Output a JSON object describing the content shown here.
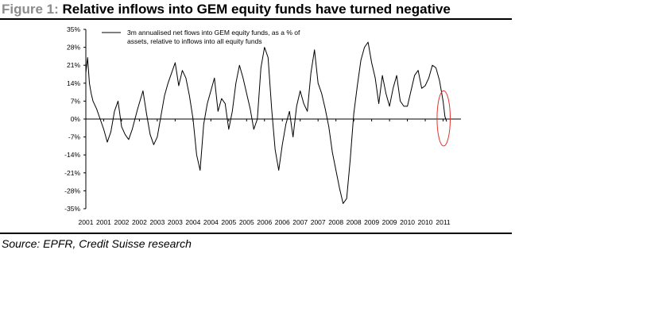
{
  "figure": {
    "prefix": "Figure 1:",
    "title": "Relative inflows into GEM equity funds have turned negative",
    "source": "Source: EPFR, Credit Suisse research"
  },
  "colors": {
    "series": "#000000",
    "highlight": "#e0362c",
    "prefix": "#8c8c8c"
  },
  "highlight": {
    "description_icon": "red-ellipse-highlight",
    "x_start": 2010.83,
    "x_end": 2011.2,
    "y_low": -10.5,
    "y_high": 11
  },
  "chart_data": {
    "type": "line",
    "title": "Relative inflows into GEM equity funds have turned negative",
    "xlabel": "",
    "ylabel": "",
    "ylim": [
      -35,
      35
    ],
    "xlim": [
      2001.0,
      2011.5
    ],
    "y_ticks": [
      35,
      28,
      21,
      14,
      7,
      0,
      -7,
      -14,
      -21,
      -28,
      -35
    ],
    "y_tick_labels": [
      "35%",
      "28%",
      "21%",
      "14%",
      "7%",
      "0%",
      "-7%",
      "-14%",
      "-21%",
      "-28%",
      "-35%"
    ],
    "x_tick_labels": [
      "2001",
      "2001",
      "2002",
      "2002",
      "2003",
      "2003",
      "2004",
      "2004",
      "2005",
      "2005",
      "2006",
      "2006",
      "2007",
      "2007",
      "2008",
      "2008",
      "2009",
      "2009",
      "2010",
      "2010",
      "2011"
    ],
    "legend": {
      "position": "top-left",
      "line1": "3m annualised net flows into GEM equity funds, as a % of",
      "line2": "assets, relative to inflows into all equity funds"
    },
    "grid": false,
    "series": [
      {
        "name": "3m annualised net flows into GEM equity funds, as a % of assets, relative to inflows into all equity funds",
        "x": [
          2001.0,
          2001.05,
          2001.1,
          2001.15,
          2001.2,
          2001.3,
          2001.4,
          2001.5,
          2001.6,
          2001.7,
          2001.8,
          2001.9,
          2002.0,
          2002.1,
          2002.2,
          2002.3,
          2002.45,
          2002.6,
          2002.7,
          2002.8,
          2002.9,
          2003.0,
          2003.1,
          2003.2,
          2003.3,
          2003.4,
          2003.5,
          2003.6,
          2003.7,
          2003.8,
          2003.9,
          2004.0,
          2004.1,
          2004.2,
          2004.3,
          2004.4,
          2004.5,
          2004.6,
          2004.7,
          2004.8,
          2004.9,
          2005.0,
          2005.1,
          2005.2,
          2005.3,
          2005.4,
          2005.5,
          2005.6,
          2005.7,
          2005.8,
          2005.9,
          2006.0,
          2006.1,
          2006.2,
          2006.3,
          2006.4,
          2006.5,
          2006.6,
          2006.7,
          2006.8,
          2006.9,
          2007.0,
          2007.1,
          2007.2,
          2007.3,
          2007.4,
          2007.5,
          2007.6,
          2007.7,
          2007.8,
          2007.9,
          2008.0,
          2008.1,
          2008.2,
          2008.3,
          2008.4,
          2008.5,
          2008.6,
          2008.7,
          2008.8,
          2008.9,
          2009.0,
          2009.1,
          2009.2,
          2009.3,
          2009.4,
          2009.5,
          2009.6,
          2009.7,
          2009.8,
          2009.9,
          2010.0,
          2010.1,
          2010.2,
          2010.3,
          2010.4,
          2010.5,
          2010.6,
          2010.7,
          2010.8,
          2010.9,
          2011.0,
          2011.05,
          2011.1
        ],
        "values": [
          18,
          24,
          14,
          10,
          7,
          4,
          0,
          -4,
          -9,
          -5,
          3,
          7,
          -3,
          -6,
          -8,
          -4,
          4,
          11,
          2,
          -6,
          -10,
          -7,
          1,
          9,
          14,
          18,
          22,
          13,
          19,
          16,
          9,
          0,
          -14,
          -20,
          -2,
          6,
          11,
          16,
          3,
          8,
          6,
          -4,
          3,
          14,
          21,
          16,
          10,
          4,
          -4,
          0,
          20,
          28,
          24,
          4,
          -12,
          -20,
          -10,
          -2,
          3,
          -7,
          5,
          11,
          6,
          3,
          18,
          27,
          14,
          10,
          4,
          -3,
          -13,
          -20,
          -27,
          -33,
          -31,
          -16,
          2,
          13,
          23,
          28,
          30,
          22,
          16,
          6,
          17,
          10,
          5,
          12,
          17,
          7,
          5,
          5,
          11,
          17,
          19,
          12,
          13,
          16,
          21,
          20,
          15,
          7,
          1,
          -1
        ]
      }
    ]
  }
}
